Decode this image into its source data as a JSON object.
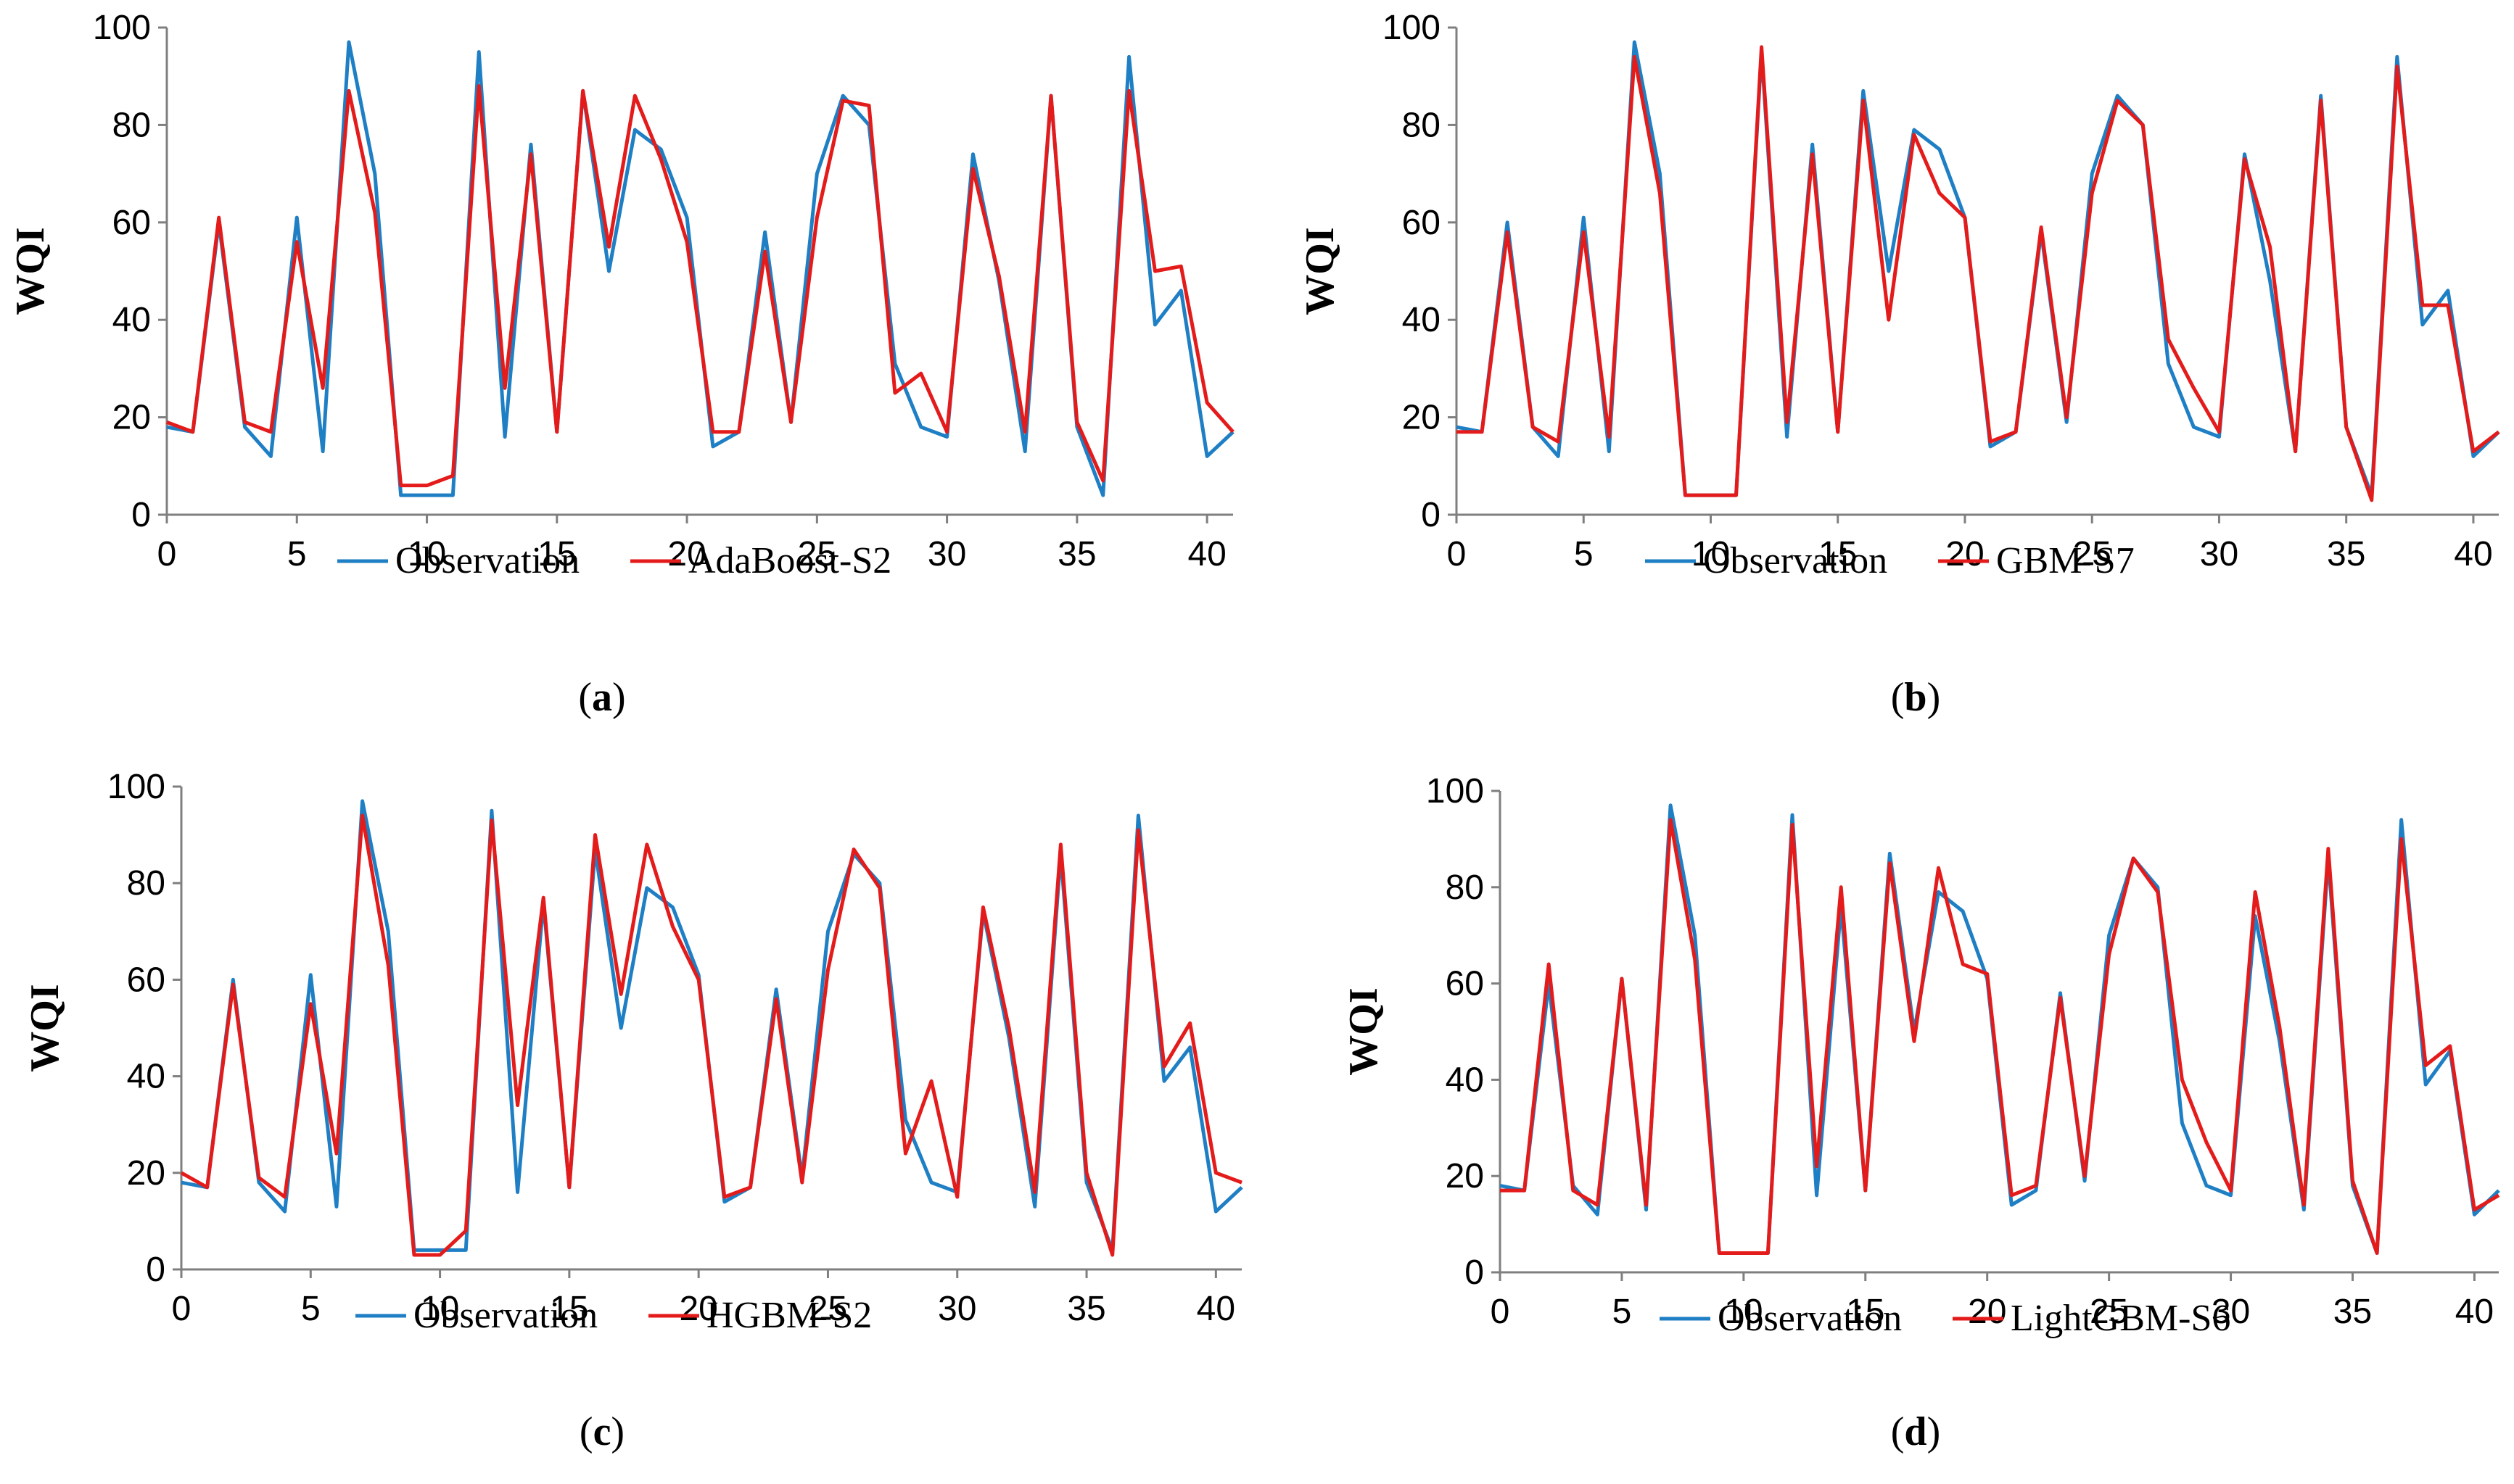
{
  "figure": {
    "panels": [
      {
        "id": "a",
        "caption_letter": "a"
      },
      {
        "id": "b",
        "caption_letter": "b"
      },
      {
        "id": "c",
        "caption_letter": "c"
      },
      {
        "id": "d",
        "caption_letter": "d"
      }
    ]
  },
  "colors": {
    "observation": "#1f7fc4",
    "prediction": "#e41b1b",
    "axis": "#7f7f7f"
  },
  "chart_data": [
    {
      "type": "line",
      "panel": "a",
      "title": "",
      "xlabel": "",
      "ylabel": "WQI",
      "xlim": [
        0,
        41
      ],
      "ylim": [
        0,
        100
      ],
      "xticks": [
        0,
        5,
        10,
        15,
        20,
        25,
        30,
        35,
        40
      ],
      "yticks": [
        0,
        20,
        40,
        60,
        80,
        100
      ],
      "legend_position": "bottom",
      "series": [
        {
          "name": "Observation",
          "color_key": "observation",
          "values": [
            18,
            17,
            60,
            18,
            12,
            61,
            13,
            97,
            70,
            4,
            4,
            4,
            95,
            16,
            76,
            17,
            87,
            50,
            79,
            75,
            61,
            14,
            17,
            58,
            19,
            70,
            86,
            80,
            31,
            18,
            16,
            74,
            48,
            13,
            86,
            18,
            4,
            94,
            39,
            46,
            12,
            17
          ]
        },
        {
          "name": "AdaBoost-S2",
          "color_key": "prediction",
          "values": [
            19,
            17,
            61,
            19,
            17,
            56,
            26,
            87,
            62,
            6,
            6,
            8,
            88,
            26,
            74,
            17,
            87,
            55,
            86,
            73,
            56,
            17,
            17,
            54,
            19,
            61,
            85,
            84,
            25,
            29,
            17,
            71,
            49,
            17,
            86,
            19,
            7,
            87,
            50,
            51,
            23,
            17
          ]
        }
      ]
    },
    {
      "type": "line",
      "panel": "b",
      "title": "",
      "xlabel": "",
      "ylabel": "WQI",
      "xlim": [
        0,
        41
      ],
      "ylim": [
        0,
        100
      ],
      "xticks": [
        0,
        5,
        10,
        15,
        20,
        25,
        30,
        35,
        40
      ],
      "yticks": [
        0,
        20,
        40,
        60,
        80,
        100
      ],
      "legend_position": "bottom",
      "series": [
        {
          "name": "Observation",
          "color_key": "observation",
          "values": [
            18,
            17,
            60,
            18,
            12,
            61,
            13,
            97,
            70,
            4,
            4,
            4,
            95,
            16,
            76,
            17,
            87,
            50,
            79,
            75,
            61,
            14,
            17,
            58,
            19,
            70,
            86,
            80,
            31,
            18,
            16,
            74,
            48,
            13,
            86,
            18,
            4,
            94,
            39,
            46,
            12,
            17
          ]
        },
        {
          "name": "GBM-S7",
          "color_key": "prediction",
          "values": [
            17,
            17,
            58,
            18,
            15,
            58,
            16,
            94,
            66,
            4,
            4,
            4,
            96,
            19,
            74,
            17,
            85,
            40,
            78,
            66,
            61,
            15,
            17,
            59,
            20,
            66,
            85,
            80,
            36,
            26,
            17,
            73,
            55,
            13,
            85,
            18,
            3,
            92,
            43,
            43,
            13,
            17
          ]
        }
      ]
    },
    {
      "type": "line",
      "panel": "c",
      "title": "",
      "xlabel": "",
      "ylabel": "WQI",
      "xlim": [
        0,
        41
      ],
      "ylim": [
        0,
        100
      ],
      "xticks": [
        0,
        5,
        10,
        15,
        20,
        25,
        30,
        35,
        40
      ],
      "yticks": [
        0,
        20,
        40,
        60,
        80,
        100
      ],
      "legend_position": "bottom",
      "series": [
        {
          "name": "Observation",
          "color_key": "observation",
          "values": [
            18,
            17,
            60,
            18,
            12,
            61,
            13,
            97,
            70,
            4,
            4,
            4,
            95,
            16,
            76,
            17,
            87,
            50,
            79,
            75,
            61,
            14,
            17,
            58,
            19,
            70,
            86,
            80,
            31,
            18,
            16,
            74,
            48,
            13,
            86,
            18,
            4,
            94,
            39,
            46,
            12,
            17
          ]
        },
        {
          "name": "HGBM-S2",
          "color_key": "prediction",
          "values": [
            20,
            17,
            59,
            19,
            15,
            55,
            24,
            94,
            63,
            3,
            3,
            8,
            93,
            34,
            77,
            17,
            90,
            57,
            88,
            71,
            60,
            15,
            17,
            56,
            18,
            62,
            87,
            79,
            24,
            39,
            15,
            75,
            50,
            16,
            88,
            20,
            3,
            91,
            42,
            51,
            20,
            18
          ]
        }
      ]
    },
    {
      "type": "line",
      "panel": "d",
      "title": "",
      "xlabel": "",
      "ylabel": "WQI",
      "xlim": [
        0,
        41
      ],
      "ylim": [
        0,
        100
      ],
      "xticks": [
        0,
        5,
        10,
        15,
        20,
        25,
        30,
        35,
        40
      ],
      "yticks": [
        0,
        20,
        40,
        60,
        80,
        100
      ],
      "legend_position": "bottom",
      "series": [
        {
          "name": "Observation",
          "color_key": "observation",
          "values": [
            18,
            17,
            60,
            18,
            12,
            61,
            13,
            97,
            70,
            4,
            4,
            4,
            95,
            16,
            76,
            17,
            87,
            50,
            79,
            75,
            61,
            14,
            17,
            58,
            19,
            70,
            86,
            80,
            31,
            18,
            16,
            74,
            48,
            13,
            86,
            18,
            4,
            94,
            39,
            46,
            12,
            17
          ]
        },
        {
          "name": "LightGBM-S6",
          "color_key": "prediction",
          "values": [
            17,
            17,
            64,
            17,
            14,
            61,
            14,
            94,
            65,
            4,
            4,
            4,
            93,
            22,
            80,
            17,
            85,
            48,
            84,
            64,
            62,
            16,
            18,
            57,
            20,
            66,
            86,
            79,
            40,
            27,
            17,
            79,
            51,
            14,
            88,
            19,
            4,
            90,
            43,
            47,
            13,
            16
          ]
        }
      ]
    }
  ]
}
